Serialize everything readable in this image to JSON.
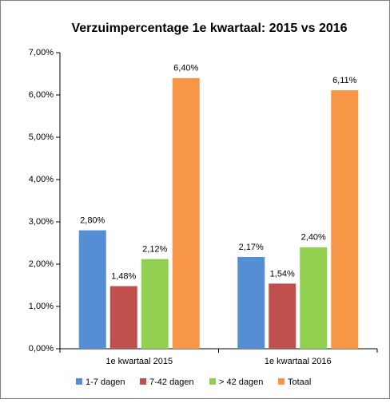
{
  "chart_data": {
    "type": "bar",
    "title": "Verzuimpercentage 1e kwartaal: 2015 vs 2016",
    "categories": [
      "1e kwartaal 2015",
      "1e kwartaal 2016"
    ],
    "series": [
      {
        "name": "1-7 dagen",
        "color": "#558ed5",
        "values": [
          2.8,
          2.17
        ],
        "value_labels": [
          "2,80%",
          "2,17%"
        ]
      },
      {
        "name": "7-42 dagen",
        "color": "#c0504d",
        "values": [
          1.48,
          1.54
        ],
        "value_labels": [
          "1,48%",
          "1,54%"
        ]
      },
      {
        "name": "> 42 dagen",
        "color": "#92d050",
        "values": [
          2.12,
          2.4
        ],
        "value_labels": [
          "2,12%",
          "2,40%"
        ]
      },
      {
        "name": "Totaal",
        "color": "#f79646",
        "values": [
          6.4,
          6.11
        ],
        "value_labels": [
          "6,40%",
          "6,11%"
        ]
      }
    ],
    "ylim": [
      0,
      7
    ],
    "yticks": [
      {
        "value": 0,
        "label": "0,00%"
      },
      {
        "value": 1,
        "label": "1,00%"
      },
      {
        "value": 2,
        "label": "2,00%"
      },
      {
        "value": 3,
        "label": "3,00%"
      },
      {
        "value": 4,
        "label": "4,00%"
      },
      {
        "value": 5,
        "label": "5,00%"
      },
      {
        "value": 6,
        "label": "6,00%"
      },
      {
        "value": 7,
        "label": "7,00%"
      }
    ],
    "legend": "bottom"
  }
}
